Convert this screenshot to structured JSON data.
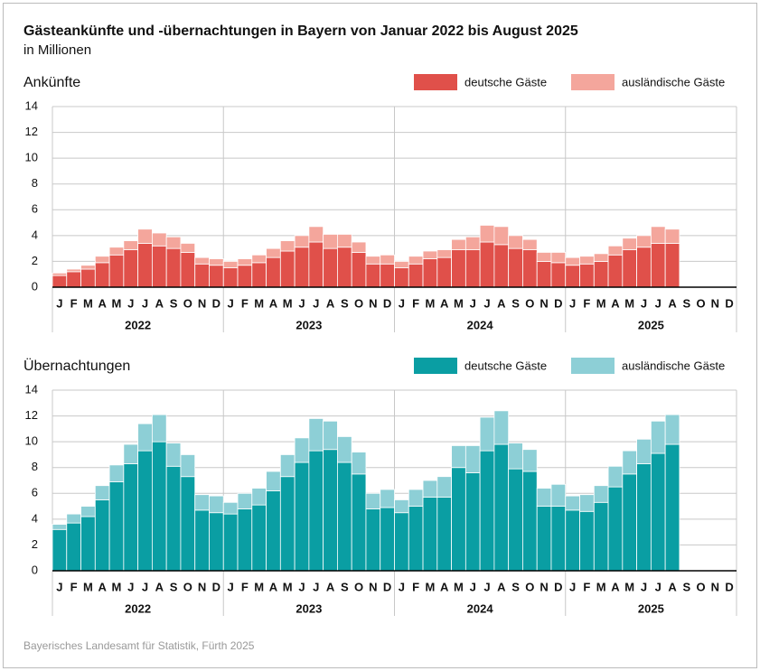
{
  "header": {
    "title": "Gästeankünfte und -übernachtungen in Bayern von Januar 2022 bis August 2025",
    "subtitle": "in Millionen"
  },
  "footer": {
    "source": "Bayerisches Landesamt für Statistik, Fürth 2025"
  },
  "chart_data": [
    {
      "type": "stacked-bar",
      "title": "Ankünfte",
      "categories": [
        "J",
        "F",
        "M",
        "A",
        "M",
        "J",
        "J",
        "A",
        "S",
        "O",
        "N",
        "D",
        "J",
        "F",
        "M",
        "A",
        "M",
        "J",
        "J",
        "A",
        "S",
        "O",
        "N",
        "D",
        "J",
        "F",
        "M",
        "A",
        "M",
        "J",
        "J",
        "A",
        "S",
        "O",
        "N",
        "D",
        "J",
        "F",
        "M",
        "A",
        "M",
        "J",
        "J",
        "A",
        "S",
        "O",
        "N",
        "D"
      ],
      "years": [
        "2022",
        "2023",
        "2024",
        "2025"
      ],
      "series": [
        {
          "name": "deutsche Gäste",
          "color": "#e0504a",
          "values": [
            0.9,
            1.2,
            1.4,
            1.9,
            2.5,
            2.9,
            3.4,
            3.2,
            3.0,
            2.7,
            1.8,
            1.7,
            1.5,
            1.7,
            1.9,
            2.3,
            2.8,
            3.1,
            3.5,
            3.0,
            3.1,
            2.7,
            1.8,
            1.8,
            1.5,
            1.8,
            2.2,
            2.3,
            2.9,
            2.9,
            3.5,
            3.3,
            3.0,
            2.9,
            2.0,
            1.9,
            1.7,
            1.8,
            2.0,
            2.5,
            2.9,
            3.1,
            3.4,
            3.4,
            null,
            null,
            null,
            null
          ]
        },
        {
          "name": "ausländische Gäste",
          "color": "#f4a69c",
          "values": [
            0.2,
            0.2,
            0.3,
            0.5,
            0.6,
            0.7,
            1.1,
            1.0,
            0.9,
            0.7,
            0.5,
            0.5,
            0.5,
            0.5,
            0.6,
            0.7,
            0.8,
            0.9,
            1.2,
            1.1,
            1.0,
            0.8,
            0.6,
            0.7,
            0.5,
            0.6,
            0.6,
            0.6,
            0.8,
            1.0,
            1.3,
            1.4,
            1.0,
            0.8,
            0.7,
            0.8,
            0.6,
            0.6,
            0.6,
            0.7,
            0.9,
            0.9,
            1.3,
            1.1,
            null,
            null,
            null,
            null
          ]
        }
      ],
      "ylim": [
        0,
        14
      ],
      "yticks": [
        0,
        2,
        4,
        6,
        8,
        10,
        12,
        14
      ],
      "grid": true,
      "legend": "top-right"
    },
    {
      "type": "stacked-bar",
      "title": "Übernachtungen",
      "categories": [
        "J",
        "F",
        "M",
        "A",
        "M",
        "J",
        "J",
        "A",
        "S",
        "O",
        "N",
        "D",
        "J",
        "F",
        "M",
        "A",
        "M",
        "J",
        "J",
        "A",
        "S",
        "O",
        "N",
        "D",
        "J",
        "F",
        "M",
        "A",
        "M",
        "J",
        "J",
        "A",
        "S",
        "O",
        "N",
        "D",
        "J",
        "F",
        "M",
        "A",
        "M",
        "J",
        "J",
        "A",
        "S",
        "O",
        "N",
        "D"
      ],
      "years": [
        "2022",
        "2023",
        "2024",
        "2025"
      ],
      "series": [
        {
          "name": "deutsche Gäste",
          "color": "#0a9ea3",
          "values": [
            3.2,
            3.7,
            4.2,
            5.5,
            6.9,
            8.3,
            9.3,
            10.0,
            8.1,
            7.3,
            4.7,
            4.5,
            4.4,
            4.8,
            5.1,
            6.2,
            7.3,
            8.4,
            9.3,
            9.4,
            8.4,
            7.5,
            4.8,
            4.9,
            4.5,
            5.0,
            5.7,
            5.7,
            8.0,
            7.6,
            9.3,
            9.8,
            7.9,
            7.7,
            5.0,
            5.0,
            4.7,
            4.6,
            5.3,
            6.5,
            7.5,
            8.3,
            9.1,
            9.8,
            null,
            null,
            null,
            null
          ]
        },
        {
          "name": "ausländische Gäste",
          "color": "#8dcfd6",
          "values": [
            0.4,
            0.7,
            0.8,
            1.1,
            1.3,
            1.5,
            2.1,
            2.1,
            1.8,
            1.7,
            1.2,
            1.3,
            0.9,
            1.2,
            1.3,
            1.5,
            1.7,
            1.9,
            2.5,
            2.2,
            2.0,
            1.7,
            1.2,
            1.4,
            1.0,
            1.3,
            1.3,
            1.6,
            1.7,
            2.1,
            2.6,
            2.6,
            2.0,
            1.7,
            1.4,
            1.7,
            1.1,
            1.3,
            1.3,
            1.6,
            1.8,
            1.9,
            2.5,
            2.3,
            null,
            null,
            null,
            null
          ]
        }
      ],
      "ylim": [
        0,
        14
      ],
      "yticks": [
        0,
        2,
        4,
        6,
        8,
        10,
        12,
        14
      ],
      "grid": true,
      "legend": "top-right"
    }
  ]
}
